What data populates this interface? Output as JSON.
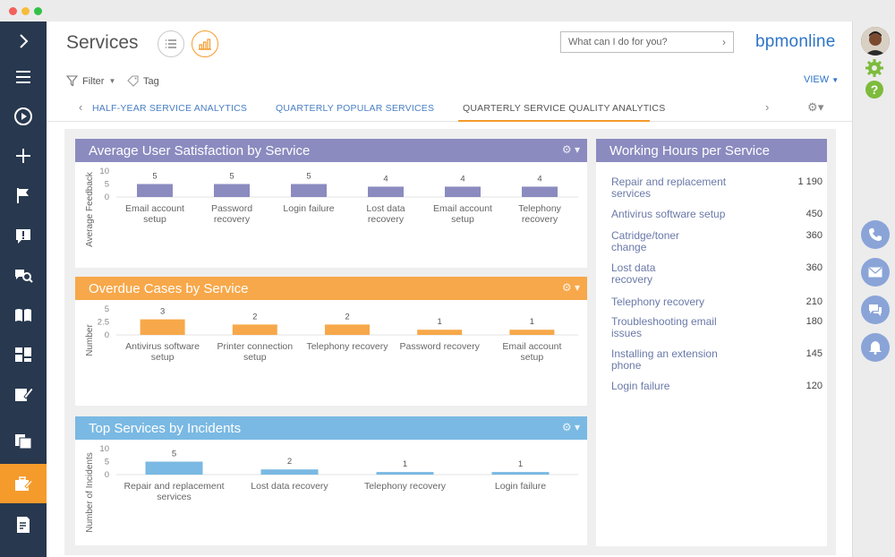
{
  "app": {
    "title": "Services",
    "logo": "bpmonline",
    "search_placeholder": "What can I do for you?"
  },
  "toolbar": {
    "filter_label": "Filter",
    "tag_label": "Tag",
    "view_label": "VIEW"
  },
  "tabs": [
    {
      "label": "HALF-YEAR SERVICE ANALYTICS"
    },
    {
      "label": "QUARTERLY POPULAR SERVICES"
    },
    {
      "label": "QUARTERLY SERVICE QUALITY ANALYTICS"
    }
  ],
  "nav_icons": [
    "chevron-right-icon",
    "menu-icon",
    "play-icon",
    "plus-icon",
    "flag-icon",
    "alert-icon",
    "search-people-icon",
    "book-icon",
    "dashboard-icon",
    "edit-icon",
    "files-icon",
    "service-icon",
    "document-edit-icon"
  ],
  "colors": {
    "nav_bg": "#28384f",
    "accent": "#f59b2b",
    "purple": "#8b8bc0",
    "orange": "#f7a84a",
    "blue": "#7ab9e3",
    "brand": "#2d74c8"
  },
  "chart_data": [
    {
      "type": "bar",
      "title": "Average User Satisfaction by Service",
      "ylabel": "Average Feedback",
      "ylim": [
        0,
        10
      ],
      "yticks": [
        0,
        5,
        10
      ],
      "categories": [
        "Email account setup",
        "Password recovery",
        "Login failure",
        "Lost data recovery",
        "Email account setup",
        "Telephony recovery"
      ],
      "values": [
        5,
        5,
        5,
        4,
        4,
        4
      ],
      "color": "#8b8bc0"
    },
    {
      "type": "bar",
      "title": "Overdue Cases by Service",
      "ylabel": "Number",
      "ylim": [
        0,
        5
      ],
      "yticks": [
        0,
        2.5,
        5
      ],
      "categories": [
        "Antivirus software setup",
        "Printer connection setup",
        "Telephony recovery",
        "Password recovery",
        "Email account setup"
      ],
      "values": [
        3,
        2,
        2,
        1,
        1
      ],
      "color": "#f7a84a"
    },
    {
      "type": "bar",
      "title": "Top Services by Incidents",
      "ylabel": "Number of Incidents",
      "ylim": [
        0,
        10
      ],
      "yticks": [
        0,
        5,
        10
      ],
      "categories": [
        "Repair and replacement services",
        "Lost data recovery",
        "Telephony recovery",
        "Login failure"
      ],
      "values": [
        5,
        2,
        1,
        1
      ],
      "color": "#7ab9e3"
    }
  ],
  "working_hours": {
    "title": "Working Hours per Service",
    "rows": [
      {
        "name": "Repair and replacement services",
        "value": "1 190"
      },
      {
        "name": "Antivirus software setup",
        "value": "450"
      },
      {
        "name": "Catridge/toner change",
        "value": "360"
      },
      {
        "name": "Lost data recovery",
        "value": "360"
      },
      {
        "name": "Telephony recovery",
        "value": "210"
      },
      {
        "name": "Troubleshooting email issues",
        "value": "180"
      },
      {
        "name": "Installing an extension phone",
        "value": "145"
      },
      {
        "name": "Login failure",
        "value": "120"
      }
    ]
  }
}
